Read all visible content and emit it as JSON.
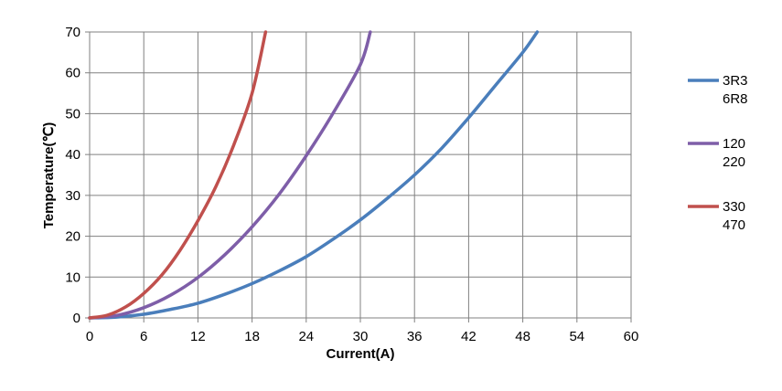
{
  "chart_data": {
    "type": "line",
    "title": "",
    "xlabel": "Current(A)",
    "ylabel": "Temperature(℃)",
    "xlim": [
      0,
      60
    ],
    "ylim": [
      0,
      70
    ],
    "xticks": [
      0,
      6,
      12,
      18,
      24,
      30,
      36,
      42,
      48,
      54,
      60
    ],
    "yticks": [
      0,
      10,
      20,
      30,
      40,
      50,
      60,
      70
    ],
    "grid": true,
    "legend_position": "right",
    "series": [
      {
        "name": "3R3 6R8",
        "label_lines": [
          "3R3",
          "6R8"
        ],
        "color": "#4a7ebb",
        "x": [
          0,
          3,
          6,
          9,
          12,
          15,
          18,
          21,
          24,
          27,
          30,
          33,
          36,
          39,
          42,
          45,
          48,
          49.6
        ],
        "y": [
          0,
          0.2,
          0.9,
          2.1,
          3.6,
          5.8,
          8.4,
          11.5,
          15.0,
          19.3,
          24.0,
          29.3,
          35.0,
          41.5,
          49.0,
          57.0,
          65.0,
          70.0
        ]
      },
      {
        "name": "120 220",
        "label_lines": [
          "120",
          "220"
        ],
        "color": "#7e5ea8",
        "x": [
          0,
          3,
          6,
          9,
          12,
          15,
          18,
          21,
          24,
          27,
          30,
          31.1
        ],
        "y": [
          0,
          0.6,
          2.5,
          5.6,
          9.9,
          15.5,
          22.3,
          30.3,
          39.7,
          50.2,
          62.0,
          70.0
        ]
      },
      {
        "name": "330 470",
        "label_lines": [
          "330",
          "470"
        ],
        "color": "#c0504d",
        "x": [
          0,
          2,
          4,
          6,
          8,
          10,
          12,
          14,
          16,
          18,
          19.5
        ],
        "y": [
          0,
          0.7,
          2.7,
          6.0,
          10.5,
          16.5,
          23.8,
          32.2,
          42.5,
          55.0,
          70.0
        ]
      }
    ]
  }
}
